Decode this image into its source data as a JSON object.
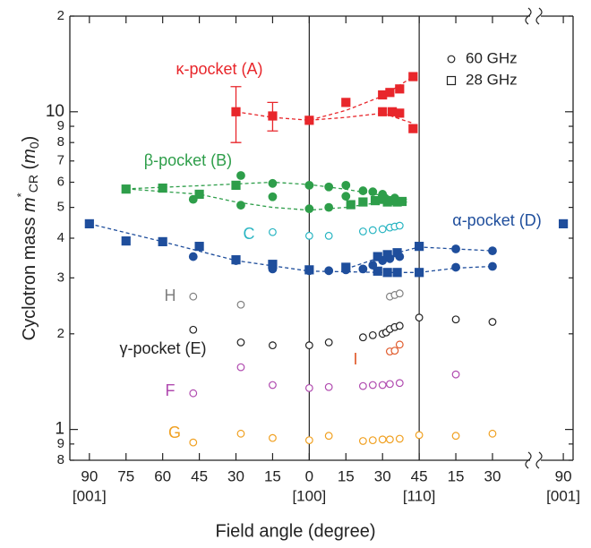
{
  "chart_data": {
    "type": "scatter",
    "log_y": true,
    "xlabel": "Field angle (degree)",
    "ylabel_parts": [
      "Cyclotron mass ",
      "m",
      "*",
      "CR",
      " (",
      "m",
      "0",
      ")"
    ],
    "xlim": [
      -8,
      198
    ],
    "ylim": [
      0.8,
      20
    ],
    "xticks": [
      {
        "value": 0,
        "label": "90"
      },
      {
        "value": 15,
        "label": "75"
      },
      {
        "value": 30,
        "label": "60"
      },
      {
        "value": 45,
        "label": "45"
      },
      {
        "value": 60,
        "label": "30"
      },
      {
        "value": 75,
        "label": "15"
      },
      {
        "value": 90,
        "label": "0"
      },
      {
        "value": 105,
        "label": "15"
      },
      {
        "value": 120,
        "label": "30"
      },
      {
        "value": 135,
        "label": "45"
      },
      {
        "value": 150,
        "label": "15"
      },
      {
        "value": 165,
        "label": "30"
      },
      {
        "value": 194,
        "label": "90"
      }
    ],
    "x_directions": [
      {
        "value": 0,
        "label": "[001]"
      },
      {
        "value": 90,
        "label": "[100]"
      },
      {
        "value": 135,
        "label": "[110]"
      },
      {
        "value": 194,
        "label": "[001]"
      }
    ],
    "vlines": [
      90,
      135
    ],
    "yticks": [
      {
        "value": 0.8,
        "label": "8"
      },
      {
        "value": 0.9,
        "label": "9"
      },
      1,
      2,
      3,
      4,
      5,
      6,
      7,
      8,
      9,
      10,
      {
        "value": 20,
        "label": "2"
      }
    ],
    "legend": [
      {
        "label": "60 GHz",
        "marker": "circle"
      },
      {
        "label": "28 GHz",
        "marker": "square"
      }
    ],
    "labels": [
      {
        "text": "κ-pocket (A)",
        "color": "#e8262b"
      },
      {
        "text": "β-pocket (B)",
        "color": "#2e9e4a"
      },
      {
        "text": "C",
        "color": "#29b5c2"
      },
      {
        "text": "α-pocket (D)",
        "color": "#1f4e9c"
      },
      {
        "text": "H",
        "color": "#808080"
      },
      {
        "text": "γ-pocket (E)",
        "color": "#222222"
      },
      {
        "text": "I",
        "color": "#e05a2b"
      },
      {
        "text": "F",
        "color": "#b04aaf"
      },
      {
        "text": "G",
        "color": "#f0a020"
      }
    ],
    "series": [
      {
        "color": "#e8262b",
        "marker": "square",
        "filled": true,
        "x": [
          60,
          75,
          90,
          105,
          120,
          123,
          127,
          120,
          124,
          127,
          132.5,
          132.5
        ],
        "values": [
          10.0,
          9.7,
          9.4,
          10.7,
          11.3,
          11.5,
          11.8,
          10.0,
          10.0,
          9.9,
          12.9,
          8.85
        ],
        "errors": [
          2,
          1,
          null,
          null,
          null,
          null,
          null,
          null,
          null,
          null,
          null,
          null
        ]
      },
      {
        "color": "#2e9e4a",
        "marker": "square",
        "filled": true,
        "x": [
          15,
          30,
          45,
          60,
          107,
          112,
          117,
          120,
          122,
          124,
          126,
          128
        ],
        "values": [
          5.71,
          5.75,
          5.5,
          5.87,
          5.1,
          5.2,
          5.25,
          5.3,
          5.2,
          5.25,
          5.2,
          5.22
        ]
      },
      {
        "color": "#2e9e4a",
        "marker": "circle",
        "filled": true,
        "x": [
          42.5,
          62,
          62,
          75,
          75,
          90,
          90,
          98,
          98,
          105,
          105,
          112,
          116,
          120,
          121,
          125
        ],
        "values": [
          5.3,
          6.3,
          5.08,
          5.95,
          5.4,
          5.87,
          4.95,
          5.8,
          5.0,
          5.87,
          5.42,
          5.64,
          5.6,
          5.5,
          5.35,
          5.35
        ]
      },
      {
        "color": "#1f4e9c",
        "marker": "square",
        "filled": true,
        "x": [
          0,
          15,
          30,
          45,
          60,
          75,
          90,
          105,
          118,
          122,
          126,
          118,
          122,
          126,
          135,
          135,
          194
        ],
        "values": [
          4.44,
          3.92,
          3.9,
          3.77,
          3.42,
          3.31,
          3.18,
          3.24,
          3.5,
          3.55,
          3.6,
          3.15,
          3.12,
          3.12,
          3.77,
          3.12,
          4.44
        ]
      },
      {
        "color": "#1f4e9c",
        "marker": "circle",
        "filled": true,
        "x": [
          42.5,
          60,
          75,
          90,
          98,
          105,
          112,
          116,
          120,
          123,
          127,
          150,
          165,
          150,
          165
        ],
        "values": [
          3.5,
          3.4,
          3.2,
          3.16,
          3.16,
          3.18,
          3.2,
          3.29,
          3.4,
          3.45,
          3.5,
          3.7,
          3.65,
          3.24,
          3.26
        ]
      },
      {
        "color": "#29b5c2",
        "marker": "circle",
        "filled": false,
        "x": [
          75,
          90,
          98,
          112,
          116,
          120,
          123,
          125,
          127
        ],
        "values": [
          4.18,
          4.07,
          4.07,
          4.2,
          4.24,
          4.27,
          4.32,
          4.35,
          4.38
        ]
      },
      {
        "color": "#808080",
        "marker": "circle",
        "filled": false,
        "x": [
          42.5,
          62,
          123,
          125,
          127
        ],
        "values": [
          2.62,
          2.47,
          2.62,
          2.65,
          2.68
        ]
      },
      {
        "color": "#222222",
        "marker": "circle",
        "filled": false,
        "x": [
          42.5,
          62,
          75,
          90,
          98,
          112,
          116,
          120,
          121.5,
          123,
          125,
          127,
          135,
          150,
          165
        ],
        "values": [
          2.06,
          1.88,
          1.84,
          1.84,
          1.88,
          1.95,
          1.98,
          2.0,
          2.02,
          2.07,
          2.1,
          2.12,
          2.25,
          2.22,
          2.18
        ]
      },
      {
        "color": "#e05a2b",
        "marker": "circle",
        "filled": false,
        "x": [
          123,
          125,
          127
        ],
        "values": [
          1.76,
          1.77,
          1.85
        ]
      },
      {
        "color": "#b04aaf",
        "marker": "circle",
        "filled": false,
        "x": [
          42.5,
          62,
          75,
          90,
          98,
          112,
          116,
          120,
          123,
          127,
          150
        ],
        "values": [
          1.3,
          1.57,
          1.38,
          1.35,
          1.36,
          1.37,
          1.38,
          1.38,
          1.39,
          1.4,
          1.49
        ]
      },
      {
        "color": "#f0a020",
        "marker": "circle",
        "filled": false,
        "x": [
          42.5,
          62,
          75,
          90,
          98,
          112,
          116,
          120,
          123,
          127,
          135,
          150,
          165
        ],
        "values": [
          0.91,
          0.97,
          0.94,
          0.925,
          0.955,
          0.92,
          0.925,
          0.93,
          0.93,
          0.935,
          0.96,
          0.955,
          0.97
        ]
      }
    ],
    "fits": [
      {
        "color": "#e8262b",
        "x": [
          60,
          75,
          90,
          105,
          120,
          132.5
        ],
        "values": [
          10.0,
          9.6,
          9.4,
          10.1,
          11.2,
          12.9
        ]
      },
      {
        "color": "#e8262b",
        "x": [
          90,
          105,
          120,
          132.5
        ],
        "values": [
          9.4,
          9.6,
          9.9,
          9.2
        ]
      },
      {
        "color": "#2e9e4a",
        "x": [
          15,
          45,
          75,
          90,
          105,
          120,
          130
        ],
        "values": [
          5.72,
          5.85,
          6.0,
          5.9,
          5.7,
          5.45,
          5.3
        ]
      },
      {
        "color": "#2e9e4a",
        "x": [
          15,
          45,
          60,
          75,
          90,
          105,
          120,
          130
        ],
        "values": [
          5.72,
          5.5,
          5.2,
          5.0,
          4.9,
          5.0,
          5.2,
          5.2
        ]
      },
      {
        "color": "#1f4e9c",
        "x": [
          0,
          30,
          60,
          90,
          120,
          135
        ],
        "values": [
          4.44,
          3.9,
          3.4,
          3.15,
          3.12,
          3.12
        ]
      },
      {
        "color": "#1f4e9c",
        "x": [
          105,
          120,
          135,
          150,
          165
        ],
        "values": [
          3.2,
          3.5,
          3.75,
          3.7,
          3.65
        ]
      },
      {
        "color": "#1f4e9c",
        "x": [
          135,
          150,
          165
        ],
        "values": [
          3.12,
          3.22,
          3.26
        ]
      }
    ]
  }
}
